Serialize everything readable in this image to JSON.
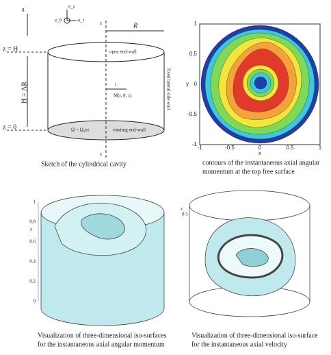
{
  "sketch": {
    "caption": "Sketch of the cylindrical cavity",
    "top_level": "z = H",
    "bottom_level": "z = 0",
    "height": "H = ΛR",
    "radius": "R",
    "gravity": "g",
    "basis": [
      "e_θ",
      "e_z",
      "e_r"
    ],
    "z_axis_top": "z",
    "z_axis_bottom": "z",
    "top_wall": "open end-wall",
    "side_wall": "fixed lateral side wall",
    "bottom_wall": "rotating end-wall",
    "rotation": "Ω = Ω₀ez",
    "point": "M(r, θ, z)",
    "r_label": "r"
  },
  "contours": {
    "caption": [
      "contours of the instantaneous axial angular",
      "momentum at the top free surface"
    ],
    "x_label": "x",
    "y_label": "y",
    "x_ticks": [
      "-1",
      "-0.5",
      "0",
      "0.5",
      "1"
    ],
    "y_ticks": [
      "1",
      "0.5",
      "0",
      "-0.5",
      "-1"
    ]
  },
  "iso_momentum": {
    "caption": [
      "Visualization of three-dimensional iso-surfaces",
      "for the instantaneous axial angular momentum"
    ],
    "z_label": "z",
    "z_ticks": [
      "1",
      "0.8",
      "0.6",
      "0.4",
      "0.2",
      "0"
    ]
  },
  "iso_velocity": {
    "caption": [
      "Visualization of three-dimensional iso-surface",
      "for the instantaneous axial velocity"
    ],
    "z_label": "z",
    "z_tick": "0.5"
  }
}
